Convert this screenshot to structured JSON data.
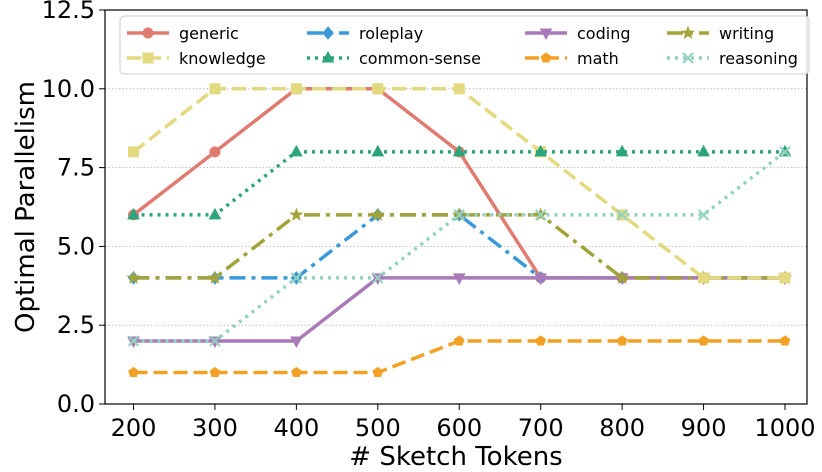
{
  "chart_data": {
    "type": "line",
    "title": "",
    "xlabel": "# Sketch Tokens",
    "ylabel": "Optimal Parallelism",
    "x": [
      200,
      300,
      400,
      500,
      600,
      700,
      800,
      900,
      1000
    ],
    "x_tick_labels": [
      "200",
      "300",
      "400",
      "500",
      "600",
      "700",
      "800",
      "900",
      "1000"
    ],
    "y_ticks": [
      0.0,
      2.5,
      5.0,
      7.5,
      10.0,
      12.5
    ],
    "y_tick_labels": [
      "0.0",
      "2.5",
      "5.0",
      "7.5",
      "10.0",
      "12.5"
    ],
    "ylim": [
      0,
      12.5
    ],
    "xlim": [
      200,
      1000
    ],
    "grid": "horizontal-dotted",
    "legend_position": "top",
    "series": [
      {
        "name": "generic",
        "values": [
          6,
          8,
          10,
          10,
          8,
          4,
          4,
          4,
          4
        ],
        "color": "#e07b72",
        "dash": "solid",
        "marker": "circle"
      },
      {
        "name": "roleplay",
        "values": [
          4,
          4,
          4,
          6,
          6,
          4,
          4,
          4,
          4
        ],
        "color": "#3a9ad9",
        "dash": "dashdot",
        "marker": "diamond"
      },
      {
        "name": "coding",
        "values": [
          2,
          2,
          2,
          4,
          4,
          4,
          4,
          4,
          4
        ],
        "color": "#a87ab8",
        "dash": "solid",
        "marker": "triangle-down"
      },
      {
        "name": "writing",
        "values": [
          4,
          4,
          6,
          6,
          6,
          6,
          4,
          4,
          4
        ],
        "color": "#a3a33a",
        "dash": "dashdot",
        "marker": "star"
      },
      {
        "name": "knowledge",
        "values": [
          8,
          10,
          10,
          10,
          10,
          8,
          6,
          4,
          4
        ],
        "color": "#e3d97f",
        "dash": "dashed",
        "marker": "square"
      },
      {
        "name": "common-sense",
        "values": [
          6,
          6,
          8,
          8,
          8,
          8,
          8,
          8,
          8
        ],
        "color": "#2ca57a",
        "dash": "dotted",
        "marker": "triangle-up"
      },
      {
        "name": "math",
        "values": [
          1,
          1,
          1,
          1,
          2,
          2,
          2,
          2,
          2
        ],
        "color": "#f2a125",
        "dash": "dashed",
        "marker": "pentagon"
      },
      {
        "name": "reasoning",
        "values": [
          2,
          2,
          4,
          4,
          6,
          6,
          6,
          6,
          8
        ],
        "color": "#93d2c0",
        "dash": "dotted",
        "marker": "x"
      }
    ]
  }
}
